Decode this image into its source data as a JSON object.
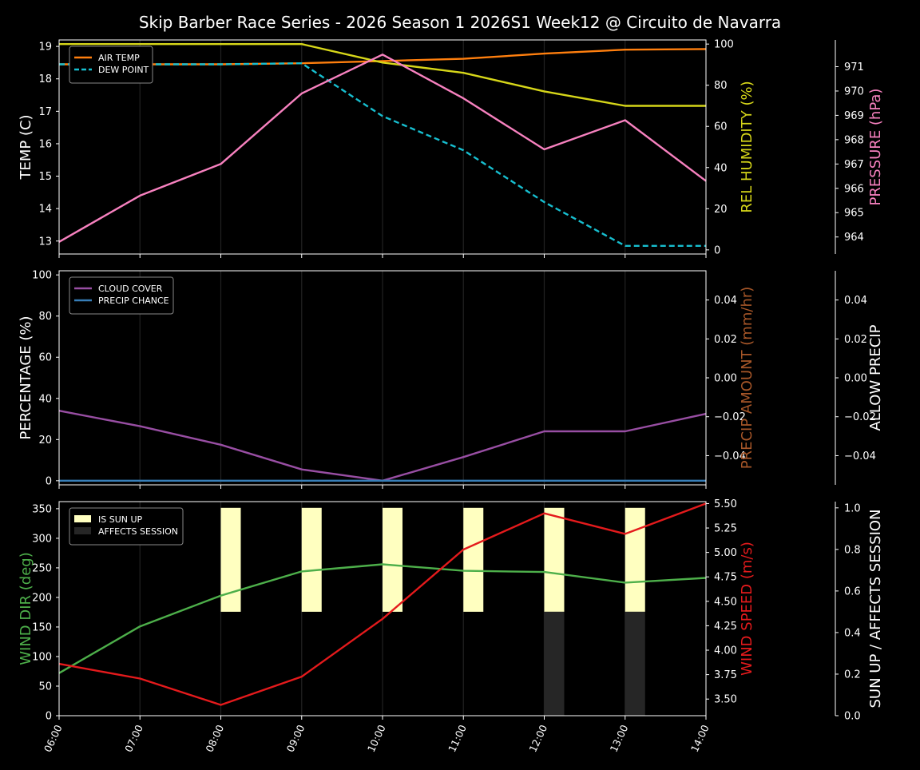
{
  "title": "Skip Barber Race Series - 2026 Season 1 2026S1 Week12 @ Circuito de Navarra",
  "colors": {
    "background": "#000000",
    "text": "#ffffff",
    "air_temp": "#ff7f0e",
    "dew_point": "#17becf",
    "humidity": "#d6d619",
    "pressure": "#f781bf",
    "cloud_cover": "#984ea3",
    "precip_chance": "#377eb8",
    "precip_amount": "#a65628",
    "wind_dir": "#4daf4a",
    "wind_speed": "#e41a1c",
    "sun_up": "#ffffc0",
    "affects_session": "#262626",
    "grid": "#222222"
  },
  "x_tick_labels": [
    "06:00",
    "07:00",
    "08:00",
    "09:00",
    "10:00",
    "11:00",
    "12:00",
    "13:00",
    "14:00"
  ],
  "chart_data": [
    {
      "type": "line",
      "x": [
        0,
        1,
        2,
        3,
        4,
        5,
        6,
        7,
        8
      ],
      "axes": {
        "left": {
          "label": "TEMP (C)",
          "ylim": [
            12.6,
            19.2
          ],
          "ticks": [
            13,
            14,
            15,
            16,
            17,
            18,
            19
          ]
        },
        "right1": {
          "label": "REL HUMIDITY (%)",
          "ylim": [
            -2,
            102
          ],
          "ticks": [
            0,
            20,
            40,
            60,
            80,
            100
          ]
        },
        "right2": {
          "label": "PRESSURE (hPa)",
          "ylim": [
            963.3,
            972.1
          ],
          "ticks": [
            964,
            965,
            966,
            967,
            968,
            969,
            970,
            971
          ]
        }
      },
      "legend": {
        "position": "top-left",
        "entries": [
          "AIR TEMP",
          "DEW POINT"
        ]
      },
      "series": [
        {
          "name": "AIR TEMP",
          "axis": "left",
          "values": [
            18.45,
            18.45,
            18.45,
            18.48,
            18.55,
            18.62,
            18.78,
            18.9,
            18.92
          ]
        },
        {
          "name": "DEW POINT",
          "axis": "left",
          "values": [
            18.45,
            18.45,
            18.45,
            18.48,
            16.85,
            15.8,
            14.2,
            12.85,
            12.85
          ]
        },
        {
          "name": "REL HUMIDITY",
          "axis": "right1",
          "values": [
            100,
            100,
            100,
            100,
            91,
            86,
            77,
            70,
            70
          ]
        },
        {
          "name": "PRESSURE",
          "axis": "right2",
          "values": [
            963.8,
            965.7,
            967.0,
            969.9,
            971.5,
            969.7,
            967.6,
            968.8,
            966.3
          ]
        }
      ]
    },
    {
      "type": "line",
      "x": [
        0,
        1,
        2,
        3,
        4,
        5,
        6,
        7,
        8
      ],
      "axes": {
        "left": {
          "label": "PERCENTAGE (%)",
          "ylim": [
            -2,
            102
          ],
          "ticks": [
            0,
            20,
            40,
            60,
            80,
            100
          ]
        },
        "right1": {
          "label": "PRECIP AMOUNT (mm/hr)",
          "ylim": [
            -0.055,
            0.055
          ],
          "ticks": [
            -0.04,
            -0.02,
            0.0,
            0.02,
            0.04
          ],
          "tick_labels": [
            "−0.04",
            "−0.02",
            "0.00",
            "0.02",
            "0.04"
          ]
        },
        "right2": {
          "label": "ALLOW PRECIP",
          "ylim": [
            -0.055,
            0.055
          ],
          "ticks": [
            -0.04,
            -0.02,
            0.0,
            0.02,
            0.04
          ],
          "tick_labels": [
            "−0.04",
            "−0.02",
            "0.00",
            "0.02",
            "0.04"
          ]
        }
      },
      "legend": {
        "position": "top-left",
        "entries": [
          "CLOUD COVER",
          "PRECIP CHANCE"
        ]
      },
      "series": [
        {
          "name": "CLOUD COVER",
          "axis": "left",
          "values": [
            34,
            26.5,
            17.5,
            5.5,
            0,
            11.5,
            24,
            24,
            32.5
          ]
        },
        {
          "name": "PRECIP CHANCE",
          "axis": "left",
          "values": [
            0,
            0,
            0,
            0,
            0,
            0,
            0,
            0,
            0
          ]
        }
      ]
    },
    {
      "type": "line",
      "x": [
        0,
        1,
        2,
        3,
        4,
        5,
        6,
        7,
        8
      ],
      "axes": {
        "left": {
          "label": "WIND DIR (deg)",
          "ylim": [
            0,
            362
          ],
          "ticks": [
            0,
            50,
            100,
            150,
            200,
            250,
            300,
            350
          ]
        },
        "right1": {
          "label": "WIND SPEED (m/s)",
          "ylim": [
            3.33,
            5.52
          ],
          "ticks": [
            3.5,
            3.75,
            4.0,
            4.25,
            4.5,
            4.75,
            5.0,
            5.25,
            5.5
          ],
          "tick_labels": [
            "3.50",
            "3.75",
            "4.00",
            "4.25",
            "4.50",
            "4.75",
            "5.00",
            "5.25",
            "5.50"
          ]
        },
        "right2": {
          "label": "SUN UP / AFFECTS SESSION",
          "ylim": [
            0,
            1.03
          ],
          "ticks": [
            0,
            0.2,
            0.4,
            0.6,
            0.8,
            1.0
          ],
          "tick_labels": [
            "0.0",
            "0.2",
            "0.4",
            "0.6",
            "0.8",
            "1.0"
          ]
        }
      },
      "legend": {
        "position": "top-left",
        "entries": [
          "IS SUN UP",
          "AFFECTS SESSION"
        ]
      },
      "bars": [
        {
          "name": "IS SUN UP",
          "x": [
            2,
            3,
            4,
            5,
            6,
            7
          ],
          "values": [
            1,
            1,
            1,
            1,
            1,
            1
          ]
        },
        {
          "name": "AFFECTS SESSION",
          "x": [
            6,
            7
          ],
          "values": [
            0.5,
            0.5
          ]
        }
      ],
      "series": [
        {
          "name": "WIND DIR",
          "axis": "left",
          "values": [
            72,
            151,
            203,
            244,
            256,
            245,
            243,
            225,
            233
          ]
        },
        {
          "name": "WIND SPEED",
          "axis": "right1",
          "values": [
            3.86,
            3.71,
            3.44,
            3.73,
            4.32,
            5.03,
            5.4,
            5.19,
            5.5
          ]
        }
      ]
    }
  ]
}
